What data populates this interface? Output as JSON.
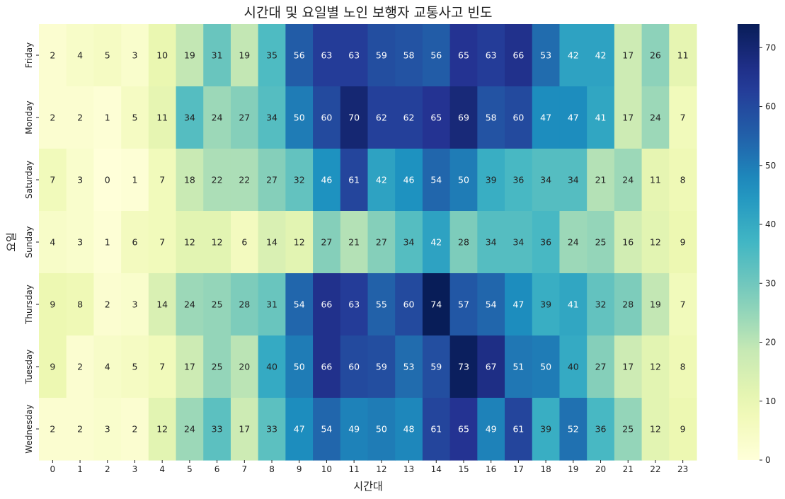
{
  "chart_data": {
    "type": "heatmap",
    "title": "시간대 및 요일별 노인 보행자 교통사고 빈도",
    "xlabel": "시간대",
    "ylabel": "요일",
    "x": [
      "0",
      "1",
      "2",
      "3",
      "4",
      "5",
      "6",
      "7",
      "8",
      "9",
      "10",
      "11",
      "12",
      "13",
      "14",
      "15",
      "16",
      "17",
      "18",
      "19",
      "20",
      "21",
      "22",
      "23"
    ],
    "y": [
      "Friday",
      "Monday",
      "Saturday",
      "Sunday",
      "Thursday",
      "Tuesday",
      "Wednesday"
    ],
    "values": [
      [
        2,
        4,
        5,
        3,
        10,
        19,
        31,
        19,
        35,
        56,
        63,
        63,
        59,
        58,
        56,
        65,
        63,
        66,
        53,
        42,
        42,
        17,
        26,
        11
      ],
      [
        2,
        2,
        1,
        5,
        11,
        34,
        24,
        27,
        34,
        50,
        60,
        70,
        62,
        62,
        65,
        69,
        58,
        60,
        47,
        47,
        41,
        17,
        24,
        7
      ],
      [
        7,
        3,
        0,
        1,
        7,
        18,
        22,
        22,
        27,
        32,
        46,
        61,
        42,
        46,
        54,
        50,
        39,
        36,
        34,
        34,
        21,
        24,
        11,
        8
      ],
      [
        4,
        3,
        1,
        6,
        7,
        12,
        12,
        6,
        14,
        12,
        27,
        21,
        27,
        34,
        42,
        28,
        34,
        34,
        36,
        24,
        25,
        16,
        12,
        9
      ],
      [
        9,
        8,
        2,
        3,
        14,
        24,
        25,
        28,
        31,
        54,
        66,
        63,
        55,
        60,
        74,
        57,
        54,
        47,
        39,
        41,
        32,
        28,
        19,
        7
      ],
      [
        9,
        2,
        4,
        5,
        7,
        17,
        25,
        20,
        40,
        50,
        66,
        60,
        59,
        53,
        59,
        73,
        67,
        51,
        50,
        40,
        27,
        17,
        12,
        8
      ],
      [
        2,
        2,
        3,
        2,
        12,
        24,
        33,
        17,
        33,
        47,
        54,
        49,
        50,
        48,
        61,
        65,
        49,
        61,
        39,
        52,
        36,
        25,
        12,
        9
      ]
    ],
    "colormap": "YlGnBu",
    "colorbar": {
      "min": 0,
      "max": 74,
      "ticks": [
        "0",
        "10",
        "20",
        "30",
        "40",
        "50",
        "60",
        "70"
      ]
    },
    "annotations": true
  }
}
